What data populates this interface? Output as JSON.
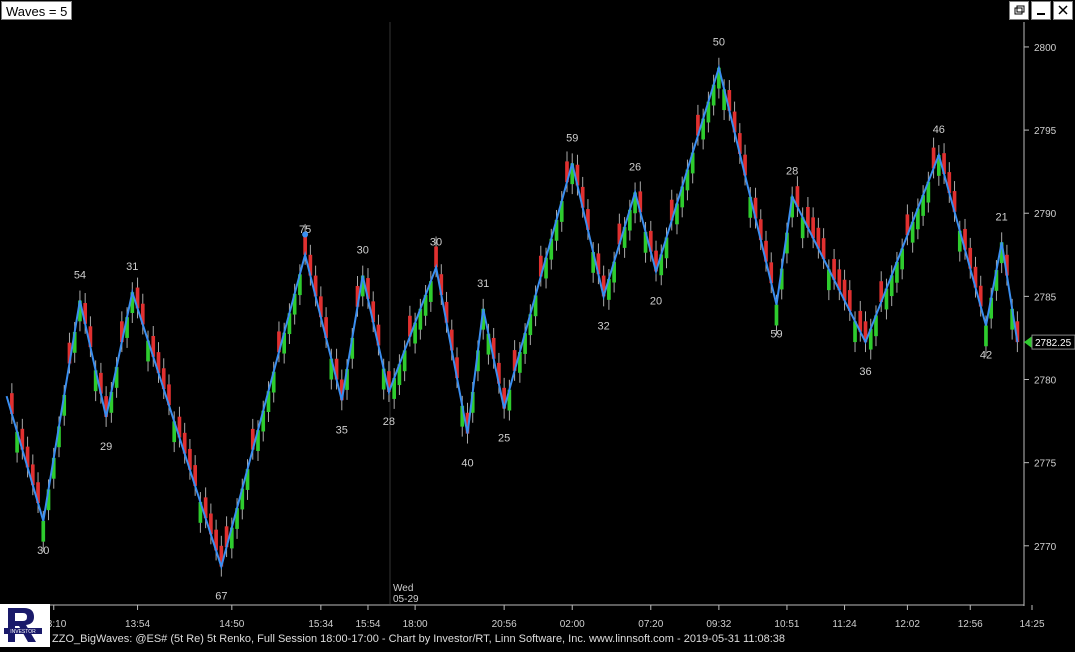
{
  "window": {
    "title": "Waves = 5",
    "restore_icon": "restore-icon",
    "minimize_icon": "minimize-icon",
    "close_icon": "close-icon"
  },
  "status_bar": {
    "text": "ZZO_BigWaves: @ES# (5t Re) 5t Renko, Full Session 18:00-17:00 - Chart by Investor/RT, Linn Software, Inc. www.linnsoft.com - 2019-05-31 11:08:38"
  },
  "logo": {
    "icon": "investor-rt-logo",
    "text": "INVESTOR"
  },
  "colors": {
    "background": "#000000",
    "up_bar": "#2ecc2e",
    "down_bar": "#e03030",
    "zigzag": "#3a8ef0",
    "axis_text": "#cfcfcf",
    "last_price_marker": "#2ecc2e"
  },
  "chart_data": {
    "type": "renko_candlestick",
    "instrument": "@ES#",
    "brick_size": 1.25,
    "y_axis": {
      "ticks": [
        2770,
        2775,
        2780,
        2785,
        2790,
        2795,
        2800
      ],
      "range": [
        2766.5,
        2801.5
      ],
      "side": "right"
    },
    "x_axis": {
      "ticks": [
        "13:10",
        "13:54",
        "14:50",
        "15:34",
        "15:54",
        "18:00",
        "20:56",
        "02:00",
        "07:20",
        "09:32",
        "10:51",
        "11:24",
        "12:02",
        "12:56",
        "14:25"
      ],
      "session_marker": {
        "line1": "Wed",
        "line2": "05-29"
      }
    },
    "last_price": "2782.25",
    "zigzag_points": [
      {
        "bar": 0,
        "price": 2779.0
      },
      {
        "bar": 7,
        "price": 2771.5,
        "label": "30"
      },
      {
        "bar": 14,
        "price": 2784.75,
        "label": "54"
      },
      {
        "bar": 19,
        "price": 2777.75,
        "label": "29"
      },
      {
        "bar": 24,
        "price": 2785.25,
        "label": "31"
      },
      {
        "bar": 41,
        "price": 2768.75,
        "label": "67"
      },
      {
        "bar": 57,
        "price": 2787.5,
        "label": "75"
      },
      {
        "bar": 64,
        "price": 2778.75,
        "label": "35"
      },
      {
        "bar": 68,
        "price": 2786.25,
        "label": "30"
      },
      {
        "bar": 73,
        "price": 2779.25,
        "label": "28"
      },
      {
        "bar": 82,
        "price": 2786.75,
        "label": "30"
      },
      {
        "bar": 88,
        "price": 2776.75,
        "label": "40"
      },
      {
        "bar": 91,
        "price": 2784.25,
        "label": "31"
      },
      {
        "bar": 95,
        "price": 2778.25,
        "label": "25"
      },
      {
        "bar": 108,
        "price": 2793.0,
        "label": "59"
      },
      {
        "bar": 114,
        "price": 2785.0,
        "label": "32"
      },
      {
        "bar": 120,
        "price": 2791.25,
        "label": "26"
      },
      {
        "bar": 124,
        "price": 2786.5,
        "label": "20"
      },
      {
        "bar": 136,
        "price": 2798.75,
        "label": "50"
      },
      {
        "bar": 147,
        "price": 2784.5,
        "label": "59"
      },
      {
        "bar": 150,
        "price": 2791.0,
        "label": "28"
      },
      {
        "bar": 164,
        "price": 2782.25,
        "label": "36"
      },
      {
        "bar": 178,
        "price": 2793.5,
        "label": "46"
      },
      {
        "bar": 187,
        "price": 2783.25,
        "label": "42"
      },
      {
        "bar": 190,
        "price": 2788.25,
        "label": "21"
      },
      {
        "bar": 193,
        "price": 2782.25
      }
    ],
    "wave_label_positions": {
      "0": "none"
    },
    "highlight_dot": {
      "bar": 57,
      "price": 2788.0
    }
  }
}
